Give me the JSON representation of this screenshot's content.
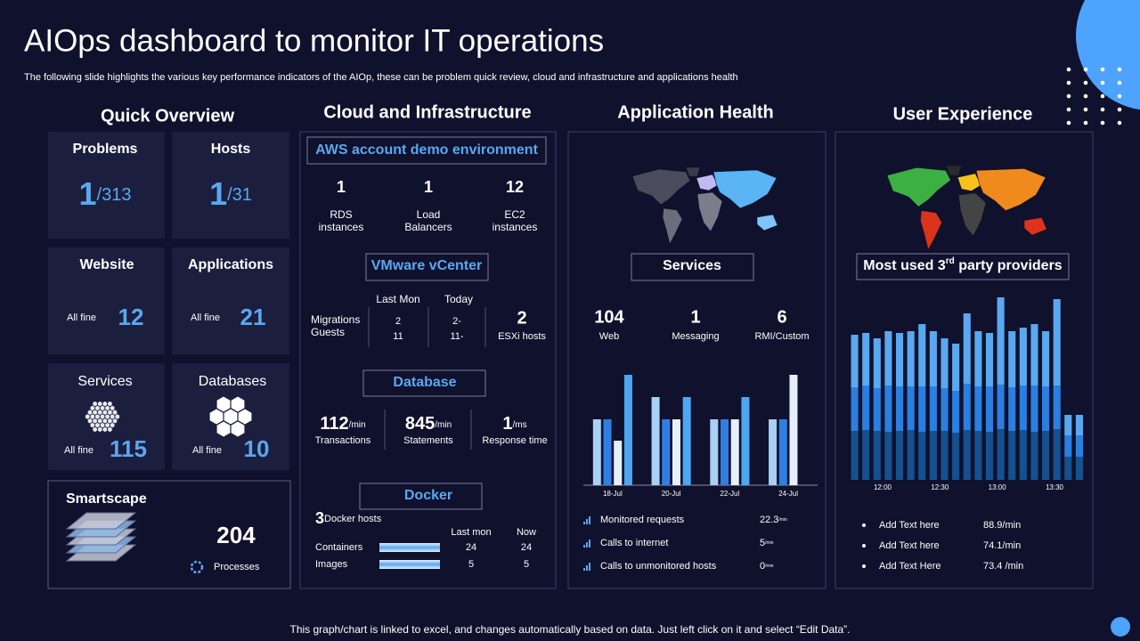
{
  "title": "AIOps dashboard to monitor IT operations",
  "subtitle": "The following slide highlights the various key performance indicators of the AIOp,  these can be problem quick review, cloud and infrastructure and applications health",
  "footer": "This graph/chart is linked to excel,  and changes automatically based on data. Just left click on it and select “Edit Data”.",
  "quick_overview": {
    "heading": "Quick Overview",
    "problems": {
      "label": "Problems",
      "value": "1",
      "total": "/313"
    },
    "hosts": {
      "label": "Hosts",
      "value": "1",
      "total": "/31"
    },
    "website": {
      "label": "Website",
      "status": "All fine",
      "value": "12"
    },
    "applications": {
      "label": "Applications",
      "status": "All fine",
      "value": "21"
    },
    "services": {
      "label": "Services",
      "status": "All fine",
      "value": "115"
    },
    "databases": {
      "label": "Databases",
      "status": "All fine",
      "value": "10"
    },
    "smartscape": {
      "label": "Smartscape",
      "value": "204",
      "caption": "Processes"
    }
  },
  "cloud": {
    "heading": "Cloud and Infrastructure",
    "aws": {
      "heading": "AWS account demo environment",
      "stats": [
        {
          "value": "1",
          "label": [
            "RDS",
            "instances"
          ]
        },
        {
          "value": "1",
          "label": [
            "Load",
            "Balancers"
          ]
        },
        {
          "value": "12",
          "label": [
            "EC2",
            "instances"
          ]
        }
      ]
    },
    "vmware": {
      "heading": "VMware vCenter",
      "col_headers": [
        "Last Mon",
        "Today"
      ],
      "row_labels": [
        "Migrations",
        "Guests"
      ],
      "last_mon": [
        "2",
        "11"
      ],
      "today": [
        "2-",
        "11-"
      ],
      "esxi": {
        "value": "2",
        "label": "ESXi  hosts"
      }
    },
    "database": {
      "heading": "Database",
      "stats": [
        {
          "value": "112",
          "unit": "/min",
          "label": "Transactions"
        },
        {
          "value": "845",
          "unit": "/min",
          "label": "Statements"
        },
        {
          "value": "1",
          "unit": "/ms",
          "label": "Response time"
        }
      ]
    },
    "docker": {
      "heading": "Docker",
      "hosts_value": "3",
      "hosts_label": "Docker hosts",
      "col_headers": [
        "Last mon",
        "Now"
      ],
      "rows": [
        {
          "label": "Containers",
          "last": "24",
          "now": "24"
        },
        {
          "label": "Images",
          "last": "5",
          "now": "5"
        }
      ]
    }
  },
  "app_health": {
    "heading": "Application Health",
    "services_heading": "Services",
    "stats": [
      {
        "value": "104",
        "label": "Web"
      },
      {
        "value": "1",
        "label": "Messaging"
      },
      {
        "value": "6",
        "label": "RMI/Custom"
      }
    ],
    "chart_data": {
      "type": "bar",
      "categories": [
        "18-Jul",
        "20-Jul",
        "22-Jul",
        "24-Jul"
      ],
      "ylim": [
        0,
        130
      ],
      "series": [
        {
          "color": "#a9d0f5",
          "values": [
            74,
            99,
            74,
            74
          ]
        },
        {
          "color": "#2f7fe3",
          "values": [
            74,
            74,
            74,
            74
          ]
        },
        {
          "color": "#e4f1fc",
          "values": [
            50,
            74,
            74,
            124
          ]
        },
        {
          "color": "#4ea6f2",
          "values": [
            124,
            99,
            99,
            null
          ]
        }
      ]
    },
    "metrics": [
      {
        "label": "Monitored requests",
        "value": "22.3",
        "unit": "/min"
      },
      {
        "label": "Calls to internet",
        "value": "5",
        "unit": "/min"
      },
      {
        "label": "Calls to unmonitored hosts",
        "value": "0",
        "unit": "/min"
      }
    ]
  },
  "user_experience": {
    "heading": "User Experience",
    "providers_heading": {
      "pre": "Most used 3",
      "sup": "rd",
      "post": " party providers"
    },
    "chart_data": {
      "type": "stacked_bar",
      "time_labels": [
        "12:00",
        "12:30",
        "13:00",
        "13:30"
      ],
      "ylim": [
        0,
        210
      ],
      "series": [
        {
          "color": "#16508f",
          "values": [
            55,
            56,
            55,
            54,
            55,
            56,
            54,
            55,
            55,
            53,
            56,
            55,
            54,
            57,
            55,
            56,
            54,
            55,
            57,
            26,
            26
          ]
        },
        {
          "color": "#2a7fe0",
          "values": [
            49,
            50,
            48,
            52,
            50,
            49,
            51,
            50,
            48,
            47,
            52,
            50,
            51,
            50,
            49,
            50,
            52,
            50,
            49,
            24,
            24
          ]
        },
        {
          "color": "#5aa8ef",
          "values": [
            59,
            59,
            56,
            61,
            60,
            62,
            70,
            62,
            56,
            53,
            79,
            62,
            60,
            98,
            63,
            65,
            69,
            62,
            97,
            23,
            23
          ]
        }
      ]
    },
    "items": [
      {
        "label": "Add Text here",
        "value": "88.9/min"
      },
      {
        "label": "Add Text here",
        "value": "74.1/min"
      },
      {
        "label": "Add Text Here",
        "value": "73.4 /min"
      }
    ]
  }
}
